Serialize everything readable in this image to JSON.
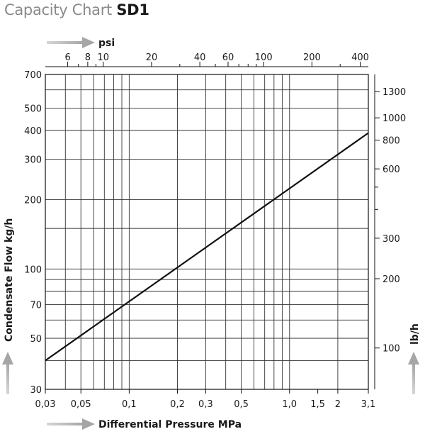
{
  "title": "Capacity Chart",
  "model": "SD1",
  "chart_data": {
    "type": "line",
    "x_scale": "log",
    "y_scale": "log",
    "xlabel": "Differential Pressure MPa",
    "ylabel": "Condensate Flow kg/h",
    "x2label": "psi",
    "y2label": "lb/h",
    "xlim": [
      0.03,
      3.1
    ],
    "ylim": [
      30,
      700
    ],
    "x_ticks": [
      {
        "v": 0.03,
        "label": "0,03"
      },
      {
        "v": 0.05,
        "label": "0,05"
      },
      {
        "v": 0.1,
        "label": "0,1"
      },
      {
        "v": 0.2,
        "label": "0,2"
      },
      {
        "v": 0.3,
        "label": "0,3"
      },
      {
        "v": 0.5,
        "label": "0,5"
      },
      {
        "v": 1.0,
        "label": "1,0"
      },
      {
        "v": 1.5,
        "label": "1,5"
      },
      {
        "v": 2,
        "label": "2"
      },
      {
        "v": 3.1,
        "label": "3,1"
      }
    ],
    "x_grid": [
      0.04,
      0.05,
      0.06,
      0.07,
      0.08,
      0.09,
      0.1,
      0.2,
      0.3,
      0.4,
      0.5,
      0.6,
      0.7,
      0.8,
      0.9,
      1.0,
      2.0
    ],
    "y_ticks": [
      {
        "v": 30,
        "label": "30"
      },
      {
        "v": 50,
        "label": "50"
      },
      {
        "v": 70,
        "label": "70"
      },
      {
        "v": 100,
        "label": "100"
      },
      {
        "v": 200,
        "label": "200"
      },
      {
        "v": 300,
        "label": "300"
      },
      {
        "v": 400,
        "label": "400"
      },
      {
        "v": 500,
        "label": "500"
      },
      {
        "v": 700,
        "label": "700"
      }
    ],
    "y_grid": [
      40,
      50,
      60,
      70,
      80,
      90,
      100,
      150,
      200,
      300,
      400,
      500,
      600
    ],
    "x2_ticks": [
      {
        "v": 6,
        "label": "6"
      },
      {
        "v": 8,
        "label": "8"
      },
      {
        "v": 10,
        "label": "10"
      },
      {
        "v": 20,
        "label": "20"
      },
      {
        "v": 40,
        "label": "40"
      },
      {
        "v": 60,
        "label": "60"
      },
      {
        "v": 100,
        "label": "100"
      },
      {
        "v": 200,
        "label": "200"
      },
      {
        "v": 400,
        "label": "400"
      }
    ],
    "x2_minor": [
      7,
      9,
      30,
      50,
      70,
      80,
      90,
      300
    ],
    "y2_ticks": [
      {
        "v": 100,
        "label": "100"
      },
      {
        "v": 200,
        "label": "200"
      },
      {
        "v": 300,
        "label": "300"
      },
      {
        "v": 600,
        "label": "600"
      },
      {
        "v": 800,
        "label": "800"
      },
      {
        "v": 1000,
        "label": "1000"
      },
      {
        "v": 1300,
        "label": "1300"
      }
    ],
    "y2_minor": [
      400,
      500
    ],
    "series": [
      {
        "points": [
          [
            0.03,
            40
          ],
          [
            3.1,
            390
          ]
        ]
      }
    ],
    "colors": {
      "line": "#111111",
      "grid": "#333333",
      "arrow": "#aaaaaa"
    }
  }
}
